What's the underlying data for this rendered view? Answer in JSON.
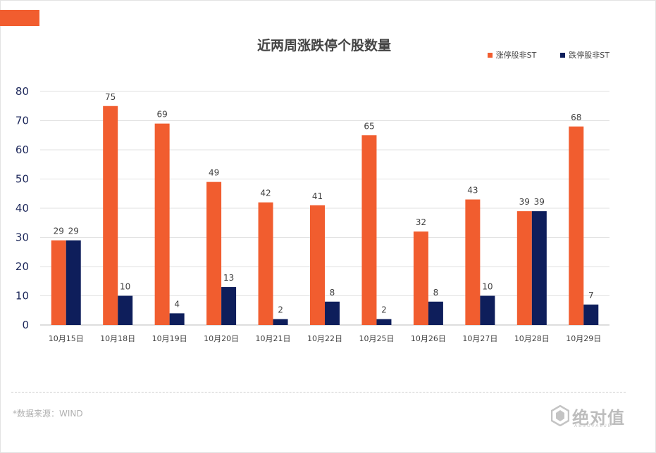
{
  "chart_data": {
    "type": "bar",
    "title": "近两周涨跌停个股数量",
    "categories": [
      "10月15日",
      "10月18日",
      "10月19日",
      "10月20日",
      "10月21日",
      "10月22日",
      "10月25日",
      "10月26日",
      "10月27日",
      "10月28日",
      "10月29日"
    ],
    "series": [
      {
        "name": "涨停股非ST",
        "color": "#f15d2f",
        "values": [
          29,
          75,
          69,
          49,
          42,
          41,
          65,
          32,
          43,
          39,
          68
        ]
      },
      {
        "name": "跌停股非ST",
        "color": "#0e1e5b",
        "values": [
          29,
          10,
          4,
          13,
          2,
          8,
          2,
          8,
          10,
          39,
          7
        ]
      }
    ],
    "ylim": [
      0,
      80
    ],
    "yticks": [
      0,
      10,
      20,
      30,
      40,
      50,
      60,
      70,
      80
    ],
    "grid": true,
    "legend_position": "top-right",
    "data_labels": true
  },
  "footer": {
    "source_note": "*数据来源：WIND",
    "logo_text": "绝对值",
    "logo_sub": "ABSOVALUE"
  },
  "colors": {
    "accent": "#f15d2f",
    "navy": "#0e1e5b"
  }
}
